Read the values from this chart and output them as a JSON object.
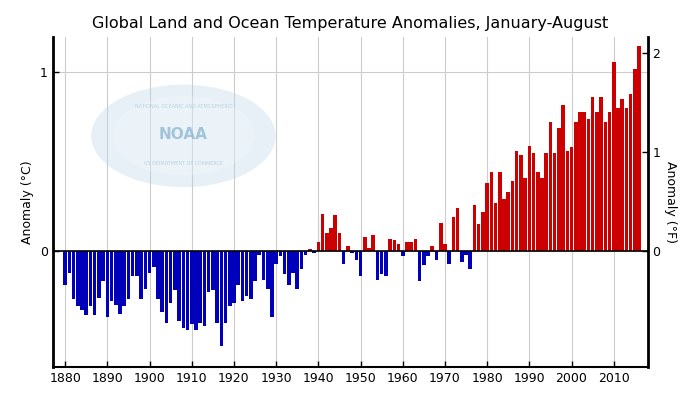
{
  "title": "Global Land and Ocean Temperature Anomalies, January-August",
  "ylabel_left": "Anomaly (°C)",
  "ylabel_right": "Anomaly (°F)",
  "ylim_c": [
    -0.65,
    1.2
  ],
  "years": [
    1880,
    1881,
    1882,
    1883,
    1884,
    1885,
    1886,
    1887,
    1888,
    1889,
    1890,
    1891,
    1892,
    1893,
    1894,
    1895,
    1896,
    1897,
    1898,
    1899,
    1900,
    1901,
    1902,
    1903,
    1904,
    1905,
    1906,
    1907,
    1908,
    1909,
    1910,
    1911,
    1912,
    1913,
    1914,
    1915,
    1916,
    1917,
    1918,
    1919,
    1920,
    1921,
    1922,
    1923,
    1924,
    1925,
    1926,
    1927,
    1928,
    1929,
    1930,
    1931,
    1932,
    1933,
    1934,
    1935,
    1936,
    1937,
    1938,
    1939,
    1940,
    1941,
    1942,
    1943,
    1944,
    1945,
    1946,
    1947,
    1948,
    1949,
    1950,
    1951,
    1952,
    1953,
    1954,
    1955,
    1956,
    1957,
    1958,
    1959,
    1960,
    1961,
    1962,
    1963,
    1964,
    1965,
    1966,
    1967,
    1968,
    1969,
    1970,
    1971,
    1972,
    1973,
    1974,
    1975,
    1976,
    1977,
    1978,
    1979,
    1980,
    1981,
    1982,
    1983,
    1984,
    1985,
    1986,
    1987,
    1988,
    1989,
    1990,
    1991,
    1992,
    1993,
    1994,
    1995,
    1996,
    1997,
    1998,
    1999,
    2000,
    2001,
    2002,
    2003,
    2004,
    2005,
    2006,
    2007,
    2008,
    2009,
    2010,
    2011,
    2012,
    2013,
    2014,
    2015,
    2016
  ],
  "anomalies": [
    -0.19,
    -0.12,
    -0.27,
    -0.31,
    -0.33,
    -0.36,
    -0.31,
    -0.36,
    -0.26,
    -0.17,
    -0.37,
    -0.28,
    -0.3,
    -0.35,
    -0.31,
    -0.27,
    -0.14,
    -0.14,
    -0.27,
    -0.21,
    -0.12,
    -0.09,
    -0.27,
    -0.34,
    -0.4,
    -0.29,
    -0.22,
    -0.39,
    -0.43,
    -0.44,
    -0.41,
    -0.44,
    -0.4,
    -0.42,
    -0.23,
    -0.22,
    -0.4,
    -0.53,
    -0.4,
    -0.31,
    -0.29,
    -0.19,
    -0.28,
    -0.25,
    -0.27,
    -0.17,
    -0.02,
    -0.16,
    -0.21,
    -0.37,
    -0.07,
    -0.03,
    -0.13,
    -0.19,
    -0.12,
    -0.21,
    -0.1,
    -0.02,
    0.01,
    -0.01,
    0.05,
    0.21,
    0.1,
    0.13,
    0.2,
    0.1,
    -0.07,
    0.03,
    -0.01,
    -0.05,
    -0.14,
    0.08,
    0.02,
    0.09,
    -0.16,
    -0.13,
    -0.14,
    0.07,
    0.06,
    0.04,
    -0.03,
    0.05,
    0.05,
    0.07,
    -0.17,
    -0.08,
    -0.03,
    0.03,
    -0.05,
    0.16,
    0.04,
    -0.07,
    0.19,
    0.24,
    -0.06,
    -0.02,
    -0.1,
    0.26,
    0.15,
    0.22,
    0.38,
    0.44,
    0.27,
    0.44,
    0.29,
    0.33,
    0.39,
    0.56,
    0.54,
    0.41,
    0.59,
    0.55,
    0.44,
    0.41,
    0.55,
    0.72,
    0.55,
    0.69,
    0.82,
    0.56,
    0.58,
    0.72,
    0.78,
    0.78,
    0.74,
    0.86,
    0.78,
    0.86,
    0.72,
    0.78,
    1.06,
    0.8,
    0.85,
    0.8,
    0.88,
    1.02,
    1.15
  ],
  "bar_color_pos": "#cc0000",
  "bar_color_neg": "#0000bb",
  "background_color": "#ffffff",
  "grid_color": "#cccccc",
  "title_fontsize": 11.5,
  "axis_fontsize": 9,
  "tick_fontsize": 9,
  "yticks_left": [
    0,
    1
  ],
  "yticks_right": [
    0,
    1,
    2
  ],
  "xticks": [
    1880,
    1890,
    1900,
    1910,
    1920,
    1930,
    1940,
    1950,
    1960,
    1970,
    1980,
    1990,
    2000,
    2010
  ],
  "xlim": [
    1877,
    2018
  ]
}
